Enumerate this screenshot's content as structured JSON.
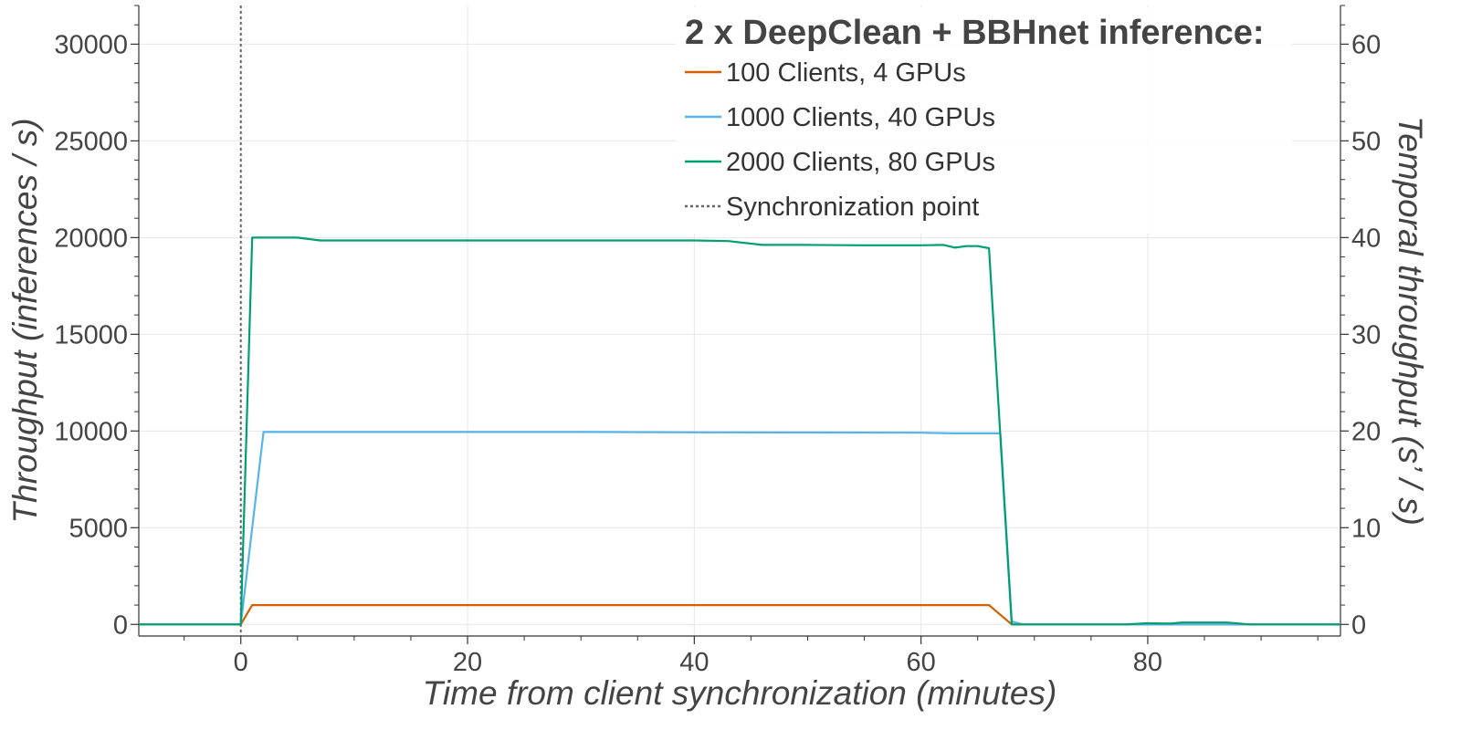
{
  "chart_data": {
    "type": "line",
    "xlabel": "Time from client synchronization (minutes)",
    "ylabel": "Throughput (inferences / s)",
    "y2label": "Temporal throughput (s’ / s)",
    "xlim": [
      -9,
      97
    ],
    "ylim": [
      -600,
      32000
    ],
    "y2lim": [
      -1.2,
      64
    ],
    "x_ticks": [
      0,
      20,
      40,
      60,
      80
    ],
    "x_tick_labels": [
      "0",
      "20",
      "40",
      "60",
      "80"
    ],
    "y_ticks": [
      0,
      5000,
      10000,
      15000,
      20000,
      25000,
      30000
    ],
    "y_tick_labels": [
      "0",
      "5000",
      "10000",
      "15000",
      "20000",
      "25000",
      "30000"
    ],
    "y2_ticks": [
      0,
      10,
      20,
      30,
      40,
      50,
      60
    ],
    "y2_tick_labels": [
      "0",
      "10",
      "20",
      "30",
      "40",
      "50",
      "60"
    ],
    "grid": true,
    "legend": {
      "title": "2 x DeepClean + BBHnet inference:",
      "position": "top-right"
    },
    "sync_point": {
      "name": "Synchronization point",
      "x": 0,
      "color": "#666666"
    },
    "series": [
      {
        "name": "100 Clients, 4 GPUs",
        "color": "#D55E00",
        "points": [
          [
            -9,
            0
          ],
          [
            0,
            0
          ],
          [
            1,
            1000
          ],
          [
            10,
            1000
          ],
          [
            20,
            1000
          ],
          [
            30,
            1000
          ],
          [
            40,
            1000
          ],
          [
            50,
            1000
          ],
          [
            60,
            1000
          ],
          [
            66,
            1000
          ],
          [
            68,
            0
          ],
          [
            97,
            0
          ]
        ]
      },
      {
        "name": "1000 Clients, 40 GPUs",
        "color": "#56B4E9",
        "points": [
          [
            -9,
            0
          ],
          [
            0,
            0
          ],
          [
            2,
            9950
          ],
          [
            10,
            9950
          ],
          [
            20,
            9950
          ],
          [
            30,
            9950
          ],
          [
            40,
            9930
          ],
          [
            50,
            9920
          ],
          [
            60,
            9910
          ],
          [
            63,
            9880
          ],
          [
            67,
            9880
          ],
          [
            68,
            150
          ],
          [
            69,
            0
          ],
          [
            97,
            0
          ]
        ]
      },
      {
        "name": "2000 Clients, 80 GPUs",
        "color": "#009E73",
        "points": [
          [
            -9,
            0
          ],
          [
            0,
            0
          ],
          [
            1,
            20000
          ],
          [
            5,
            20000
          ],
          [
            7,
            19850
          ],
          [
            10,
            19850
          ],
          [
            20,
            19850
          ],
          [
            30,
            19850
          ],
          [
            40,
            19850
          ],
          [
            43,
            19820
          ],
          [
            46,
            19620
          ],
          [
            50,
            19620
          ],
          [
            55,
            19600
          ],
          [
            60,
            19600
          ],
          [
            62,
            19620
          ],
          [
            63,
            19480
          ],
          [
            64,
            19560
          ],
          [
            65,
            19560
          ],
          [
            66,
            19450
          ],
          [
            68,
            0
          ],
          [
            75,
            0
          ],
          [
            78,
            0
          ],
          [
            80,
            60
          ],
          [
            82,
            40
          ],
          [
            83,
            100
          ],
          [
            87,
            100
          ],
          [
            89,
            0
          ],
          [
            97,
            0
          ]
        ]
      }
    ]
  }
}
